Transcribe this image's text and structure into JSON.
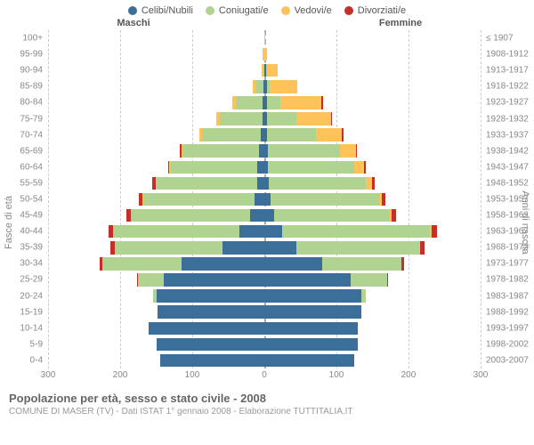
{
  "type": "population-pyramid",
  "legend": [
    {
      "label": "Celibi/Nubili",
      "color": "#3b6e99"
    },
    {
      "label": "Coniugati/e",
      "color": "#b1d392"
    },
    {
      "label": "Vedovi/e",
      "color": "#fdc358"
    },
    {
      "label": "Divorziati/e",
      "color": "#c62f29"
    }
  ],
  "side_left_label": "Maschi",
  "side_right_label": "Femmine",
  "y_axis_left_title": "Fasce di età",
  "y_axis_right_title": "Anni di nascita",
  "xlim": 300,
  "xticks": [
    300,
    200,
    100,
    0,
    100,
    200,
    300
  ],
  "xtick_positions_pct": [
    0,
    16.67,
    33.33,
    50,
    66.67,
    83.33,
    100
  ],
  "grid_positions_pct": [
    0,
    16.67,
    33.33,
    66.67,
    83.33,
    100
  ],
  "background_color": "#ffffff",
  "grid_color": "#cccccc",
  "center_line_color": "#aaaaaa",
  "label_fontsize": 10,
  "title_fontsize": 13,
  "rows": [
    {
      "age": "100+",
      "birth": "≤ 1907",
      "m": [
        0,
        0,
        0,
        0
      ],
      "f": [
        0,
        0,
        1,
        0
      ]
    },
    {
      "age": "95-99",
      "birth": "1908-1912",
      "m": [
        0,
        0,
        2,
        0
      ],
      "f": [
        0,
        0,
        4,
        0
      ]
    },
    {
      "age": "90-94",
      "birth": "1913-1917",
      "m": [
        0,
        1,
        3,
        0
      ],
      "f": [
        3,
        1,
        14,
        0
      ]
    },
    {
      "age": "85-89",
      "birth": "1918-1922",
      "m": [
        1,
        11,
        4,
        0
      ],
      "f": [
        4,
        4,
        38,
        0
      ]
    },
    {
      "age": "80-84",
      "birth": "1923-1927",
      "m": [
        2,
        37,
        6,
        0
      ],
      "f": [
        4,
        18,
        57,
        2
      ]
    },
    {
      "age": "75-79",
      "birth": "1928-1932",
      "m": [
        2,
        60,
        5,
        0
      ],
      "f": [
        4,
        40,
        48,
        2
      ]
    },
    {
      "age": "70-74",
      "birth": "1933-1937",
      "m": [
        5,
        82,
        3,
        0
      ],
      "f": [
        4,
        68,
        35,
        3
      ]
    },
    {
      "age": "65-69",
      "birth": "1938-1942",
      "m": [
        8,
        105,
        2,
        2
      ],
      "f": [
        5,
        100,
        22,
        2
      ]
    },
    {
      "age": "60-64",
      "birth": "1943-1947",
      "m": [
        10,
        120,
        2,
        2
      ],
      "f": [
        5,
        120,
        13,
        3
      ]
    },
    {
      "age": "55-59",
      "birth": "1948-1952",
      "m": [
        10,
        140,
        1,
        4
      ],
      "f": [
        6,
        135,
        8,
        4
      ]
    },
    {
      "age": "50-54",
      "birth": "1953-1957",
      "m": [
        13,
        155,
        1,
        5
      ],
      "f": [
        9,
        150,
        4,
        5
      ]
    },
    {
      "age": "45-49",
      "birth": "1958-1962",
      "m": [
        20,
        165,
        0,
        6
      ],
      "f": [
        14,
        160,
        3,
        6
      ]
    },
    {
      "age": "40-44",
      "birth": "1963-1967",
      "m": [
        35,
        175,
        0,
        6
      ],
      "f": [
        25,
        205,
        2,
        8
      ]
    },
    {
      "age": "35-39",
      "birth": "1968-1972",
      "m": [
        58,
        150,
        0,
        5
      ],
      "f": [
        45,
        170,
        1,
        6
      ]
    },
    {
      "age": "30-34",
      "birth": "1973-1977",
      "m": [
        115,
        110,
        0,
        3
      ],
      "f": [
        80,
        110,
        0,
        4
      ]
    },
    {
      "age": "25-29",
      "birth": "1978-1982",
      "m": [
        140,
        35,
        0,
        1
      ],
      "f": [
        120,
        50,
        0,
        1
      ]
    },
    {
      "age": "20-24",
      "birth": "1983-1987",
      "m": [
        150,
        4,
        0,
        0
      ],
      "f": [
        135,
        6,
        0,
        0
      ]
    },
    {
      "age": "15-19",
      "birth": "1988-1992",
      "m": [
        148,
        0,
        0,
        0
      ],
      "f": [
        135,
        0,
        0,
        0
      ]
    },
    {
      "age": "10-14",
      "birth": "1993-1997",
      "m": [
        160,
        0,
        0,
        0
      ],
      "f": [
        130,
        0,
        0,
        0
      ]
    },
    {
      "age": "5-9",
      "birth": "1998-2002",
      "m": [
        150,
        0,
        0,
        0
      ],
      "f": [
        130,
        0,
        0,
        0
      ]
    },
    {
      "age": "0-4",
      "birth": "2003-2007",
      "m": [
        145,
        0,
        0,
        0
      ],
      "f": [
        125,
        0,
        0,
        0
      ]
    }
  ],
  "footer": {
    "title": "Popolazione per età, sesso e stato civile - 2008",
    "subtitle": "COMUNE DI MASER (TV) - Dati ISTAT 1° gennaio 2008 - Elaborazione TUTTITALIA.IT"
  }
}
